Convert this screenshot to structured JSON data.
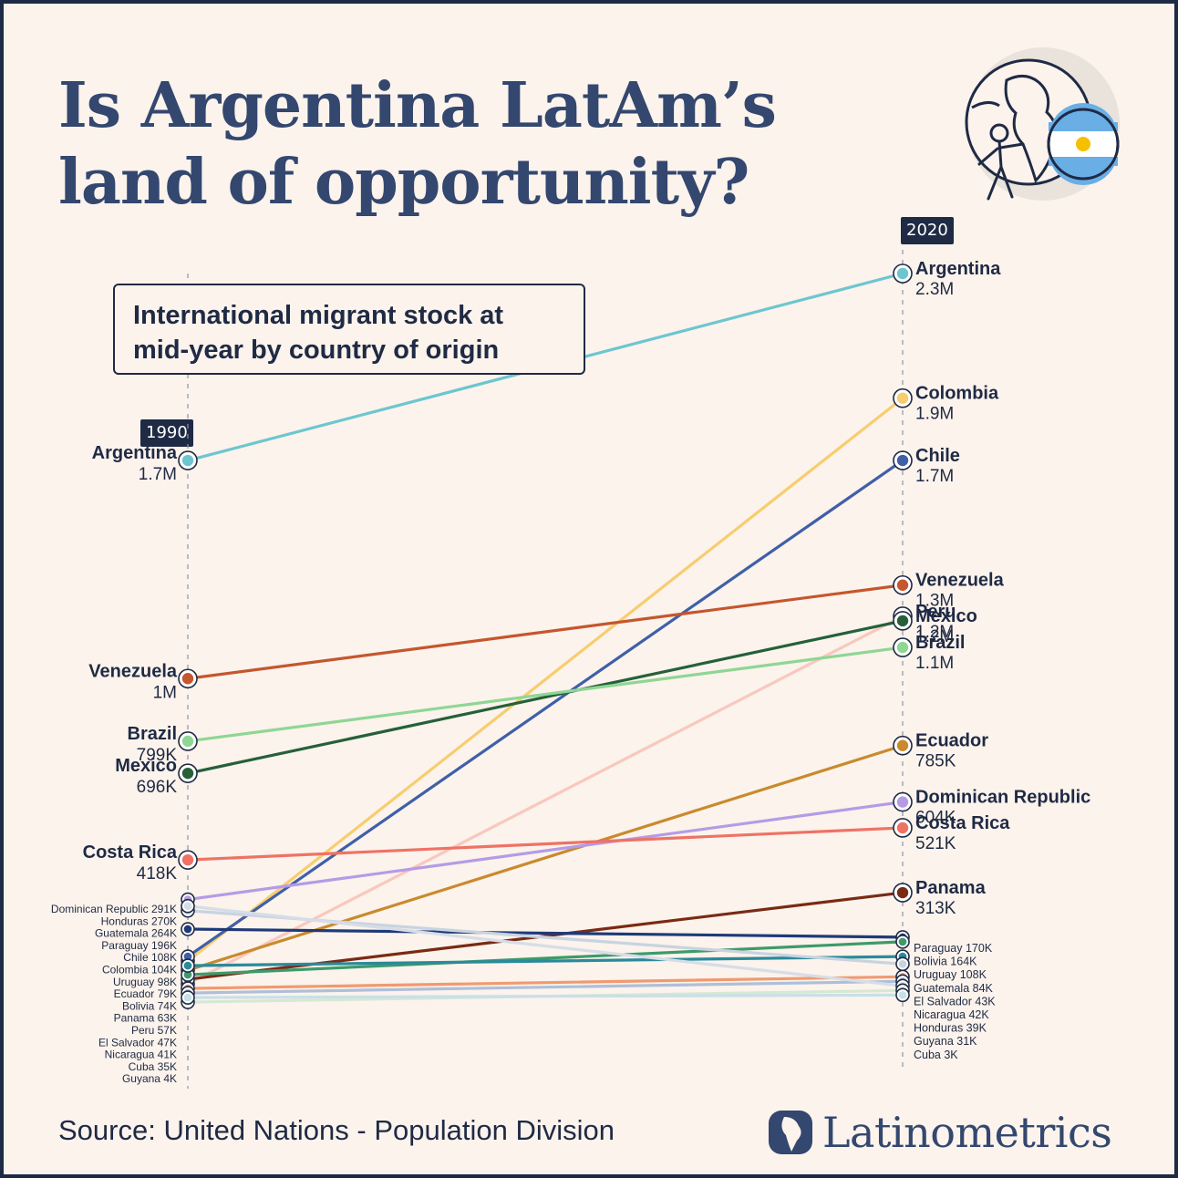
{
  "title": "Is Argentina LatAm’s land of opportunity?",
  "subtitle": "International migrant stock at mid-year by country of origin",
  "source": "Source: United Nations - Population Division",
  "brand": "Latinometrics",
  "colors": {
    "background": "#fbf3ec",
    "frame": "#1f2a44",
    "title": "#33476f",
    "text": "#1f2a44"
  },
  "chart_data": {
    "type": "slope",
    "x": [
      "1990",
      "2020"
    ],
    "series": [
      {
        "name": "Argentina",
        "values": [
          1700000,
          2300000
        ],
        "labels": [
          "1.7M",
          "2.3M"
        ],
        "color": "#6cc6cf"
      },
      {
        "name": "Colombia",
        "values": [
          104000,
          1900000
        ],
        "labels": [
          "104K",
          "1.9M"
        ],
        "color": "#f7cd6f"
      },
      {
        "name": "Chile",
        "values": [
          108000,
          1700000
        ],
        "labels": [
          "108K",
          "1.7M"
        ],
        "color": "#3f5fa8"
      },
      {
        "name": "Venezuela",
        "values": [
          1000000,
          1300000
        ],
        "labels": [
          "1M",
          "1.3M"
        ],
        "color": "#c5562e"
      },
      {
        "name": "Peru",
        "values": [
          57000,
          1200000
        ],
        "labels": [
          "57K",
          "1.2M"
        ],
        "color": "#f9c8bd"
      },
      {
        "name": "Mexico",
        "values": [
          696000,
          1200000
        ],
        "labels": [
          "696K",
          "1.2M"
        ],
        "color": "#25603a"
      },
      {
        "name": "Brazil",
        "values": [
          799000,
          1100000
        ],
        "labels": [
          "799K",
          "1.1M"
        ],
        "color": "#8fd694"
      },
      {
        "name": "Ecuador",
        "values": [
          79000,
          785000
        ],
        "labels": [
          "79K",
          "785K"
        ],
        "color": "#c98a2e"
      },
      {
        "name": "Dominican Republic",
        "values": [
          291000,
          604000
        ],
        "labels": [
          "291K",
          "604K"
        ],
        "color": "#b59be6"
      },
      {
        "name": "Costa Rica",
        "values": [
          418000,
          521000
        ],
        "labels": [
          "418K",
          "521K"
        ],
        "color": "#ef7264"
      },
      {
        "name": "Panama",
        "values": [
          63000,
          313000
        ],
        "labels": [
          "63K",
          "313K"
        ],
        "color": "#7a2a14"
      },
      {
        "name": "Paraguay",
        "values": [
          196000,
          170000
        ],
        "labels": [
          "196K",
          "170K"
        ],
        "color": "#1f3a78"
      },
      {
        "name": "Bolivia",
        "values": [
          74000,
          164000
        ],
        "labels": [
          "74K",
          "164K"
        ],
        "color": "#3d9a6b"
      },
      {
        "name": "Uruguay",
        "values": [
          98000,
          108000
        ],
        "labels": [
          "98K",
          "108K"
        ],
        "color": "#2a8a9a"
      },
      {
        "name": "Guatemala",
        "values": [
          264000,
          84000
        ],
        "labels": [
          "264K",
          "84K"
        ],
        "color": "#c9d3e0"
      },
      {
        "name": "El Salvador",
        "values": [
          47000,
          43000
        ],
        "labels": [
          "47K",
          "43K"
        ],
        "color": "#f09a70"
      },
      {
        "name": "Nicaragua",
        "values": [
          41000,
          42000
        ],
        "labels": [
          "41K",
          "42K"
        ],
        "color": "#aebfd9"
      },
      {
        "name": "Honduras",
        "values": [
          270000,
          39000
        ],
        "labels": [
          "270K",
          "39K"
        ],
        "color": "#d6dde8"
      },
      {
        "name": "Guyana",
        "values": [
          4000,
          31000
        ],
        "labels": [
          "4K",
          "31K"
        ],
        "color": "#d7e8d2"
      },
      {
        "name": "Cuba",
        "values": [
          35000,
          3000
        ],
        "labels": [
          "35K",
          "3K"
        ],
        "color": "#c8e0e8"
      }
    ],
    "ylim": [
      0,
      2300000
    ],
    "grid": false,
    "legend": "none"
  }
}
